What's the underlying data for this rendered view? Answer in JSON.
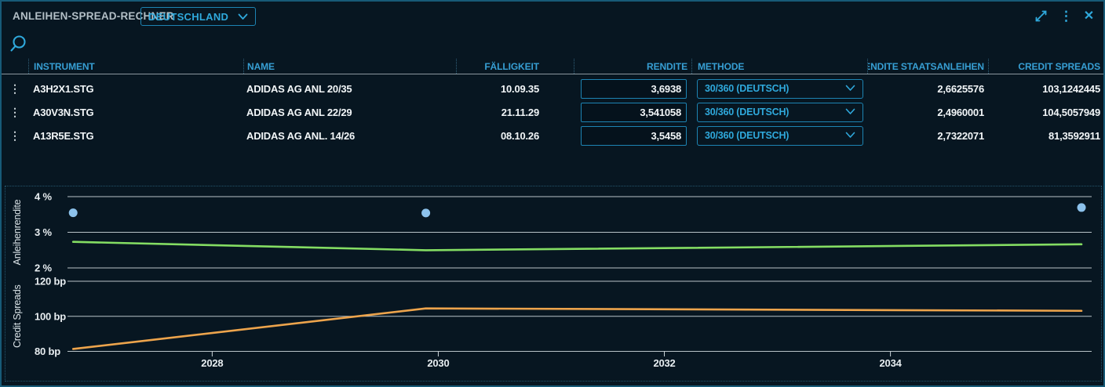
{
  "window": {
    "title": "ANLEIHEN-SPREAD-RECHNER",
    "country_selector": {
      "value": "DEUTSCHLAND"
    }
  },
  "glyphs": {
    "kebab": "⋮",
    "close": "✕"
  },
  "table": {
    "columns": [
      "INSTRUMENT",
      "NAME",
      "FÄLLIGKEIT",
      "RENDITE",
      "METHODE",
      "RENDITE STAATSANLEIHEN",
      "CREDIT SPREADS"
    ],
    "rows": [
      {
        "instrument": "A3H2X1.STG",
        "name": "ADIDAS AG ANL 20/35",
        "faelligkeit": "10.09.35",
        "rendite": "3,6938",
        "methode": "30/360 (DEUTSCH)",
        "rendite_staatsanleihen": "2,6625576",
        "credit_spreads": "103,1242445"
      },
      {
        "instrument": "A30V3N.STG",
        "name": "ADIDAS AG ANL 22/29",
        "faelligkeit": "21.11.29",
        "rendite": "3,541058",
        "methode": "30/360 (DEUTSCH)",
        "rendite_staatsanleihen": "2,4960001",
        "credit_spreads": "104,5057949"
      },
      {
        "instrument": "A13R5E.STG",
        "name": "ADIDAS AG ANL. 14/26",
        "faelligkeit": "08.10.26",
        "rendite": "3,5458",
        "methode": "30/360 (DEUTSCH)",
        "rendite_staatsanleihen": "2,7322071",
        "credit_spreads": "81,3592911"
      }
    ]
  },
  "chart_data": {
    "type": "line",
    "x": [
      2026.77,
      2029.89,
      2035.69
    ],
    "x_ticks": [
      2028,
      2030,
      2032,
      2034
    ],
    "x_range": [
      2026.72,
      2035.78
    ],
    "series": [
      {
        "name": "Rendite",
        "type": "scatter",
        "axis": 0,
        "color": "#8cc2ec",
        "values": [
          3.5458,
          3.541058,
          3.6938
        ]
      },
      {
        "name": "Rendite Staatsanleihen",
        "type": "line",
        "axis": 0,
        "color": "#84dd63",
        "values": [
          2.7322071,
          2.4960001,
          2.6625576
        ]
      },
      {
        "name": "Credit Spreads",
        "type": "line",
        "axis": 1,
        "color": "#eda44c",
        "values": [
          81.3592911,
          104.5057949,
          103.1242445
        ]
      }
    ],
    "y_axes": [
      {
        "label": "Anleihenrendite",
        "tick_labels": [
          "4 %",
          "3 %",
          "2 %"
        ],
        "tick_values": [
          4,
          3,
          2
        ]
      },
      {
        "label": "Credit Spreads",
        "tick_labels": [
          "120 bp",
          "100 bp",
          "80 bp"
        ],
        "tick_values": [
          120,
          100,
          80
        ]
      }
    ],
    "grid": true,
    "legend": "none"
  },
  "colors": {
    "background": "#071621",
    "accent_cyan": "#2fa9dc",
    "header_text": "#379fd4",
    "value_text": "#f2f6f8",
    "grid_line": "#ccd6db",
    "line_green": "#84dd63",
    "line_orange": "#eda44c",
    "dot_blue": "#8cc2ec"
  }
}
